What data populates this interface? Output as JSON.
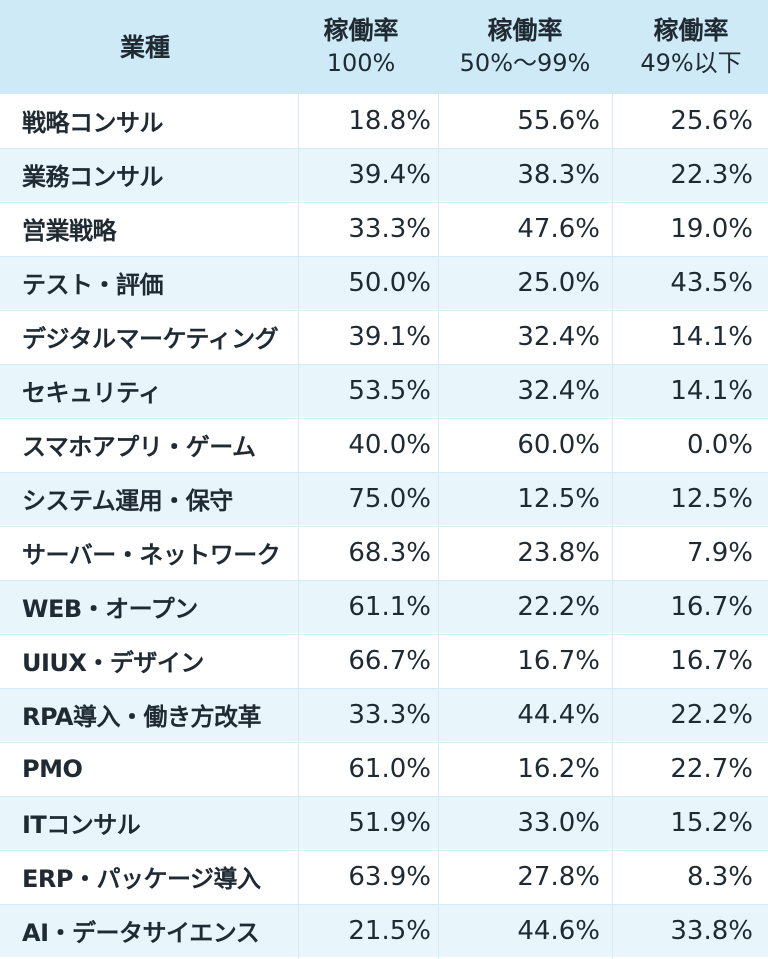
{
  "chart_data": {
    "type": "table",
    "columns": [
      {
        "label": "業種",
        "sub": ""
      },
      {
        "label": "稼働率",
        "sub": "100%"
      },
      {
        "label": "稼働率",
        "sub": "50%〜99%"
      },
      {
        "label": "稼働率",
        "sub": "49%以下"
      }
    ],
    "rows": [
      {
        "name": "戦略コンサル",
        "values": [
          "18.8%",
          "55.6%",
          "25.6%"
        ]
      },
      {
        "name": "業務コンサル",
        "values": [
          "39.4%",
          "38.3%",
          "22.3%"
        ]
      },
      {
        "name": "営業戦略",
        "values": [
          "33.3%",
          "47.6%",
          "19.0%"
        ]
      },
      {
        "name": "テスト・評価",
        "values": [
          "50.0%",
          "25.0%",
          "43.5%"
        ]
      },
      {
        "name": "デジタルマーケティング",
        "values": [
          "39.1%",
          "32.4%",
          "14.1%"
        ]
      },
      {
        "name": "セキュリティ",
        "values": [
          "53.5%",
          "32.4%",
          "14.1%"
        ]
      },
      {
        "name": "スマホアプリ・ゲーム",
        "values": [
          "40.0%",
          "60.0%",
          "0.0%"
        ]
      },
      {
        "name": "システム運用・保守",
        "values": [
          "75.0%",
          "12.5%",
          "12.5%"
        ]
      },
      {
        "name": "サーバー・ネットワーク",
        "values": [
          "68.3%",
          "23.8%",
          "7.9%"
        ]
      },
      {
        "name": "WEB・オープン",
        "values": [
          "61.1%",
          "22.2%",
          "16.7%"
        ]
      },
      {
        "name": "UIUX・デザイン",
        "values": [
          "66.7%",
          "16.7%",
          "16.7%"
        ]
      },
      {
        "name": "RPA導入・働き方改革",
        "values": [
          "33.3%",
          "44.4%",
          "22.2%"
        ]
      },
      {
        "name": "PMO",
        "values": [
          "61.0%",
          "16.2%",
          "22.7%"
        ]
      },
      {
        "name": "ITコンサル",
        "values": [
          "51.9%",
          "33.0%",
          "15.2%"
        ]
      },
      {
        "name": "ERP・パッケージ導入",
        "values": [
          "63.9%",
          "27.8%",
          "8.3%"
        ]
      },
      {
        "name": "AI・データサイエンス",
        "values": [
          "21.5%",
          "44.6%",
          "33.8%"
        ]
      }
    ]
  },
  "colors": {
    "header_bg": "#cdeaf6",
    "row_alt_bg": "#e8f6fb",
    "text": "#1f2a33",
    "grid": "#d4ebf4"
  }
}
